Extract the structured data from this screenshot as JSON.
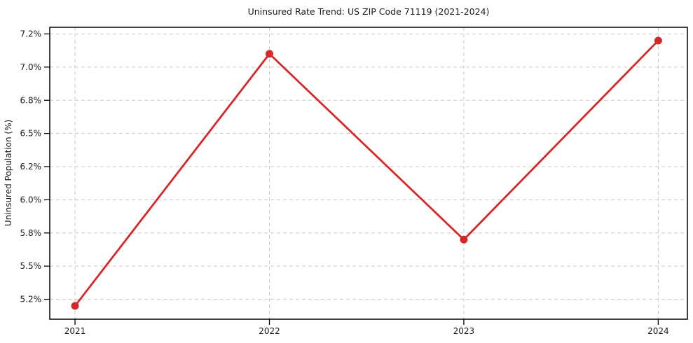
{
  "chart_data": {
    "type": "line",
    "title": "Uninsured Rate Trend: US ZIP Code 71119 (2021-2024)",
    "xlabel": "",
    "ylabel": "Uninsured Population (%)",
    "x": [
      2021,
      2022,
      2023,
      2024
    ],
    "series": [
      {
        "name": "Uninsured rate",
        "values": [
          5.2,
          7.1,
          5.7,
          7.2
        ]
      }
    ],
    "xlim": [
      2020.87,
      2024.15
    ],
    "ylim": [
      5.1,
      7.3
    ],
    "xticks": {
      "values": [
        2021,
        2022,
        2023,
        2024
      ],
      "labels": [
        "2021",
        "2022",
        "2023",
        "2024"
      ]
    },
    "yticks": {
      "values": [
        5.25,
        5.5,
        5.75,
        6.0,
        6.25,
        6.5,
        6.75,
        7.0,
        7.25
      ],
      "labels": [
        "5.2%",
        "5.5%",
        "5.8%",
        "6.0%",
        "6.2%",
        "6.5%",
        "6.8%",
        "7.0%",
        "7.2%"
      ]
    },
    "grid": true,
    "grid_style": "dashed",
    "legend": null,
    "style": {
      "line_color": "#d62728",
      "marker": "circle",
      "marker_radius": 5.5,
      "line_width": 2.8,
      "grid_color": "#c8c8c8",
      "axis_color": "#000000",
      "tick_color": "#000000",
      "text_color": "#1a1a1a",
      "background": "#ffffff"
    }
  }
}
